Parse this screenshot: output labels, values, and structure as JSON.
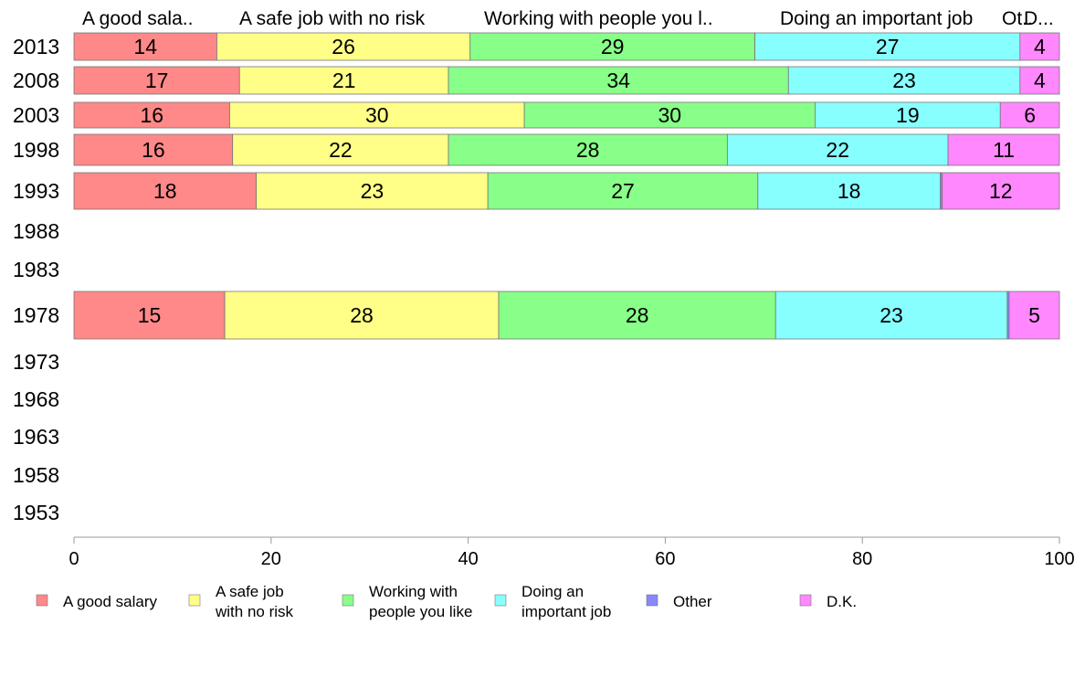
{
  "chart_data": {
    "type": "bar",
    "orientation": "horizontal",
    "stacked": true,
    "categories": [
      "2013",
      "2008",
      "2003",
      "1998",
      "1993",
      "1988",
      "1983",
      "1978",
      "1973",
      "1968",
      "1963",
      "1958",
      "1953"
    ],
    "series": [
      {
        "name": "A good salary",
        "legend_label": [
          "A good salary"
        ],
        "top_label": "A good sala..",
        "color": "#ff8888",
        "values": [
          14,
          17,
          16,
          16,
          18,
          null,
          null,
          15,
          null,
          null,
          null,
          null,
          null
        ],
        "shares": [
          14.5,
          16.8,
          15.8,
          16.1,
          18.5,
          null,
          null,
          15.3,
          null,
          null,
          null,
          null,
          null
        ]
      },
      {
        "name": "A safe job with no risk",
        "legend_label": [
          "A safe job",
          "with no risk"
        ],
        "top_label": "A safe job with no risk",
        "color": "#ffff88",
        "values": [
          26,
          21,
          30,
          22,
          23,
          null,
          null,
          28,
          null,
          null,
          null,
          null,
          null
        ],
        "shares": [
          25.7,
          21.2,
          29.9,
          21.9,
          23.5,
          null,
          null,
          27.8,
          null,
          null,
          null,
          null,
          null
        ]
      },
      {
        "name": "Working with people you like",
        "legend_label": [
          "Working with",
          "people you like"
        ],
        "top_label": "Working with people you l..",
        "color": "#88ff88",
        "values": [
          29,
          34,
          30,
          28,
          27,
          null,
          null,
          28,
          null,
          null,
          null,
          null,
          null
        ],
        "shares": [
          28.9,
          34.5,
          29.5,
          28.3,
          27.4,
          null,
          null,
          28.1,
          null,
          null,
          null,
          null,
          null
        ]
      },
      {
        "name": "Doing an important job",
        "legend_label": [
          "Doing an",
          "important job"
        ],
        "top_label": "Doing an important job",
        "color": "#88ffff",
        "values": [
          27,
          23,
          19,
          22,
          18,
          null,
          null,
          23,
          null,
          null,
          null,
          null,
          null
        ],
        "shares": [
          26.9,
          23.5,
          18.8,
          22.4,
          18.5,
          null,
          null,
          23.5,
          null,
          null,
          null,
          null,
          null
        ]
      },
      {
        "name": "Other",
        "legend_label": [
          "Other"
        ],
        "top_label": "Ot..",
        "color": "#8888ff",
        "values": [
          null,
          null,
          null,
          null,
          null,
          null,
          null,
          null,
          null,
          null,
          null,
          null,
          null
        ],
        "shares": [
          0.0,
          0.0,
          0.0,
          0.0,
          0.2,
          null,
          null,
          0.2,
          null,
          null,
          null,
          null,
          null
        ]
      },
      {
        "name": "D.K.",
        "legend_label": [
          "D.K."
        ],
        "top_label": "D...",
        "color": "#ff88ff",
        "values": [
          4,
          4,
          6,
          11,
          12,
          null,
          null,
          5,
          null,
          null,
          null,
          null,
          null
        ],
        "shares": [
          4.0,
          4.0,
          6.0,
          11.3,
          11.9,
          null,
          null,
          5.1,
          null,
          null,
          null,
          null,
          null
        ]
      }
    ],
    "xlim": [
      0,
      100
    ],
    "x_ticks": [
      "0",
      "20",
      "40",
      "60",
      "80",
      "100"
    ],
    "title": "",
    "xlabel": "",
    "ylabel": "",
    "grid": false,
    "legend_position": "bottom"
  }
}
